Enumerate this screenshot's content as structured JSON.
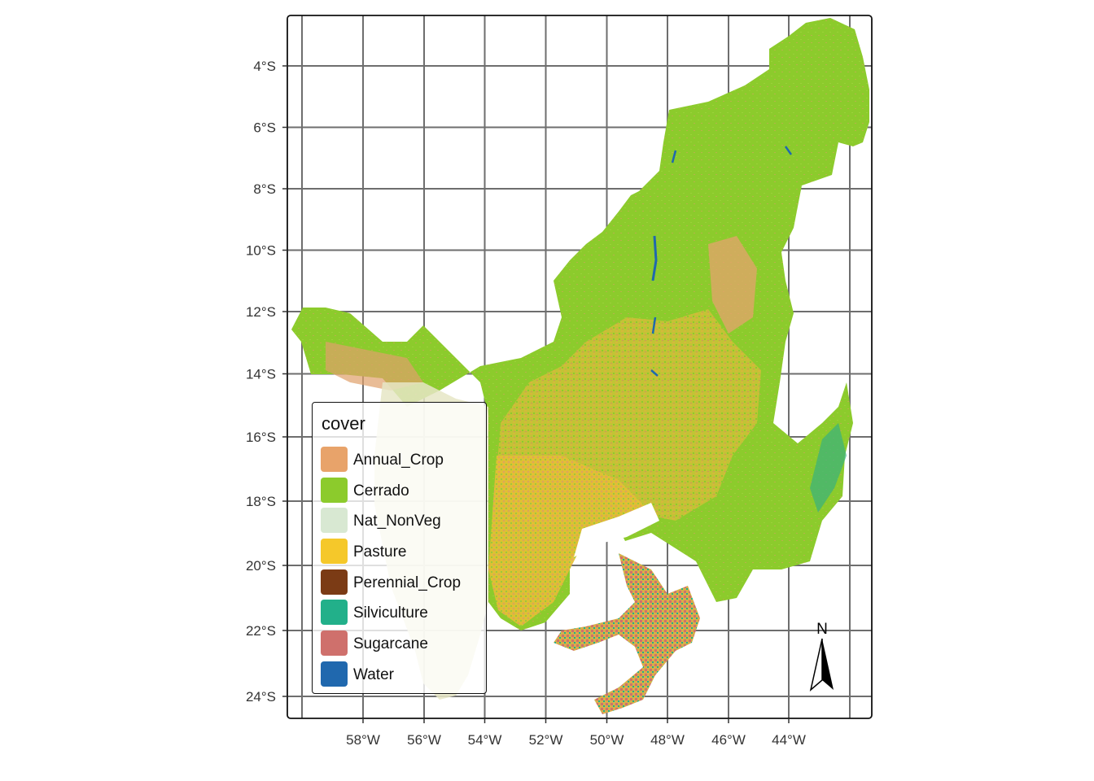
{
  "map": {
    "lat_range": [
      -24.6,
      -2.4
    ],
    "lon_range": [
      -60.0,
      -40.6
    ]
  },
  "axes": {
    "x_ticks": [
      {
        "value": -58,
        "label": "58°W"
      },
      {
        "value": -56,
        "label": "56°W"
      },
      {
        "value": -54,
        "label": "54°W"
      },
      {
        "value": -52,
        "label": "52°W"
      },
      {
        "value": -50,
        "label": "50°W"
      },
      {
        "value": -48,
        "label": "48°W"
      },
      {
        "value": -46,
        "label": "46°W"
      },
      {
        "value": -44,
        "label": "44°W"
      }
    ],
    "y_ticks": [
      {
        "value": -4,
        "label": "4°S"
      },
      {
        "value": -6,
        "label": "6°S"
      },
      {
        "value": -8,
        "label": "8°S"
      },
      {
        "value": -10,
        "label": "10°S"
      },
      {
        "value": -12,
        "label": "12°S"
      },
      {
        "value": -14,
        "label": "14°S"
      },
      {
        "value": -16,
        "label": "16°S"
      },
      {
        "value": -18,
        "label": "18°S"
      },
      {
        "value": -20,
        "label": "20°S"
      },
      {
        "value": -22,
        "label": "22°S"
      },
      {
        "value": -24,
        "label": "24°S"
      }
    ]
  },
  "legend": {
    "title": "cover",
    "items": [
      {
        "label": "Annual_Crop",
        "color": "#E8A36A"
      },
      {
        "label": "Cerrado",
        "color": "#8CCB2C"
      },
      {
        "label": "Nat_NonVeg",
        "color": "#D8E8D2"
      },
      {
        "label": "Pasture",
        "color": "#F5C82A"
      },
      {
        "label": "Perennial_Crop",
        "color": "#7B3B15"
      },
      {
        "label": "Silviculture",
        "color": "#22B08A"
      },
      {
        "label": "Sugarcane",
        "color": "#CF706C"
      },
      {
        "label": "Water",
        "color": "#2068AE"
      }
    ]
  },
  "north_arrow": {
    "label": "N"
  }
}
